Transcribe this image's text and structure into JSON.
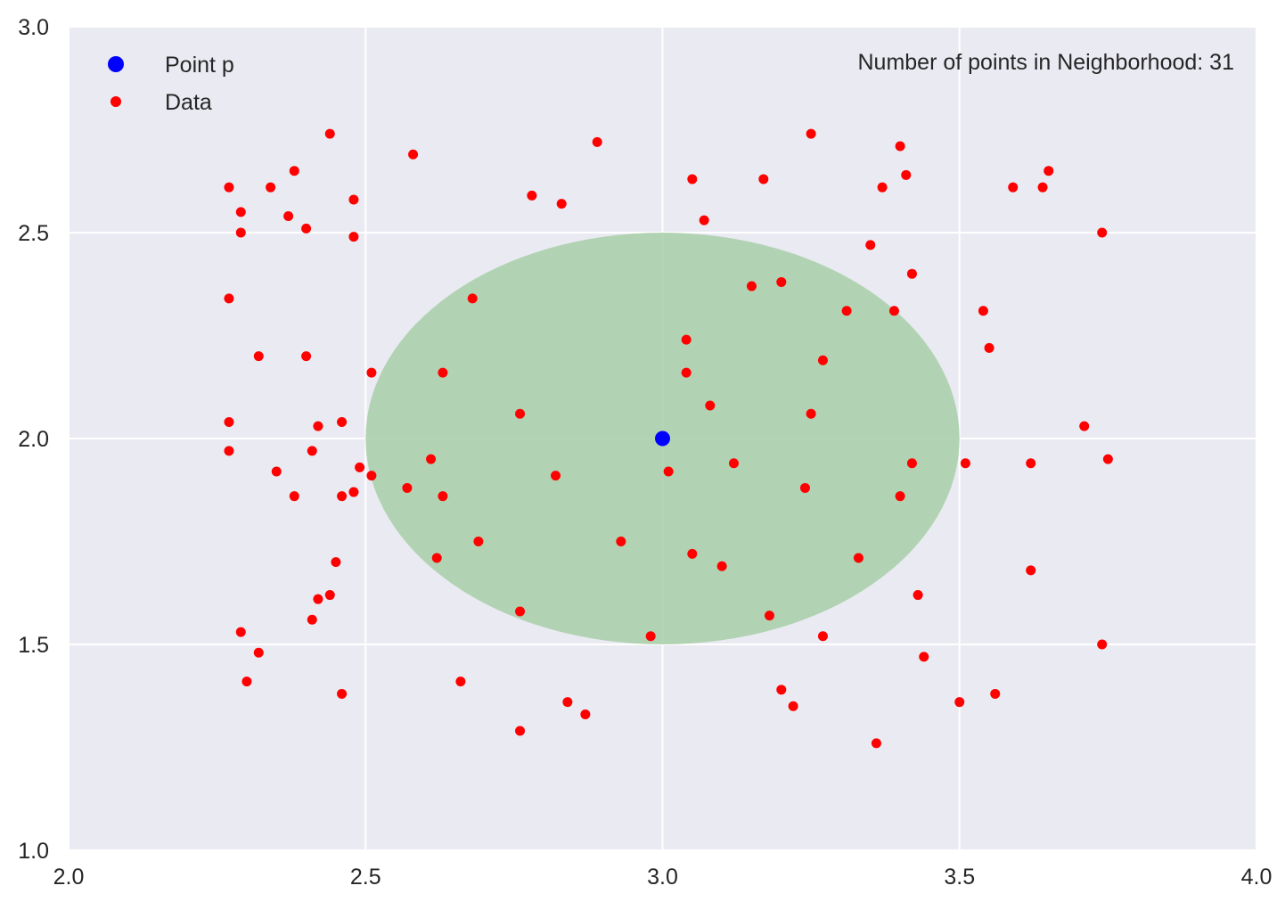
{
  "chart_data": {
    "type": "scatter",
    "title": "",
    "xlabel": "",
    "ylabel": "",
    "xlim": [
      2.0,
      4.0
    ],
    "ylim": [
      1.0,
      3.0
    ],
    "xticks": [
      2.0,
      2.5,
      3.0,
      3.5,
      4.0
    ],
    "yticks": [
      1.0,
      1.5,
      2.0,
      2.5,
      3.0
    ],
    "xtick_labels": [
      "2.0",
      "2.5",
      "3.0",
      "3.5",
      "4.0"
    ],
    "ytick_labels": [
      "1.0",
      "1.5",
      "2.0",
      "2.5",
      "3.0"
    ],
    "grid": true,
    "legend_position": "top-left",
    "background_color": "#eaeaf2",
    "grid_color": "#ffffff",
    "annotation": "Number of points in Neighborhood: 31",
    "neighborhood": {
      "center": [
        3.0,
        2.0
      ],
      "radius": 0.5,
      "color": "#a8cfa8"
    },
    "series": [
      {
        "name": "Point p",
        "color": "#0000ff",
        "points": [
          [
            3.0,
            2.0
          ]
        ]
      },
      {
        "name": "Data",
        "color": "#ff0000",
        "points": [
          [
            2.27,
            2.61
          ],
          [
            2.29,
            2.55
          ],
          [
            2.29,
            2.5
          ],
          [
            2.34,
            2.61
          ],
          [
            2.37,
            2.54
          ],
          [
            2.38,
            2.65
          ],
          [
            2.4,
            2.51
          ],
          [
            2.44,
            2.74
          ],
          [
            2.48,
            2.58
          ],
          [
            2.48,
            2.49
          ],
          [
            2.58,
            2.69
          ],
          [
            2.89,
            2.72
          ],
          [
            2.78,
            2.59
          ],
          [
            2.83,
            2.57
          ],
          [
            2.27,
            2.34
          ],
          [
            2.32,
            2.2
          ],
          [
            2.4,
            2.2
          ],
          [
            2.27,
            2.04
          ],
          [
            2.27,
            1.97
          ],
          [
            2.35,
            1.92
          ],
          [
            2.38,
            1.86
          ],
          [
            2.41,
            1.97
          ],
          [
            2.42,
            2.03
          ],
          [
            2.46,
            2.04
          ],
          [
            2.46,
            1.86
          ],
          [
            2.48,
            1.87
          ],
          [
            2.49,
            1.93
          ],
          [
            2.51,
            1.91
          ],
          [
            2.51,
            2.16
          ],
          [
            2.45,
            1.7
          ],
          [
            2.42,
            1.61
          ],
          [
            2.44,
            1.62
          ],
          [
            2.41,
            1.56
          ],
          [
            2.29,
            1.53
          ],
          [
            2.32,
            1.48
          ],
          [
            2.3,
            1.41
          ],
          [
            2.46,
            1.38
          ],
          [
            2.68,
            2.34
          ],
          [
            2.63,
            2.16
          ],
          [
            2.61,
            1.95
          ],
          [
            2.57,
            1.88
          ],
          [
            2.63,
            1.86
          ],
          [
            2.62,
            1.71
          ],
          [
            2.69,
            1.75
          ],
          [
            2.76,
            2.06
          ],
          [
            2.82,
            1.91
          ],
          [
            2.93,
            1.75
          ],
          [
            2.76,
            1.58
          ],
          [
            2.66,
            1.41
          ],
          [
            2.76,
            1.29
          ],
          [
            2.84,
            1.36
          ],
          [
            2.87,
            1.33
          ],
          [
            2.98,
            1.52
          ],
          [
            3.05,
            2.63
          ],
          [
            3.07,
            2.53
          ],
          [
            3.04,
            2.24
          ],
          [
            3.04,
            2.16
          ],
          [
            3.08,
            2.08
          ],
          [
            3.01,
            1.92
          ],
          [
            3.12,
            1.94
          ],
          [
            3.05,
            1.72
          ],
          [
            3.1,
            1.69
          ],
          [
            3.17,
            2.63
          ],
          [
            3.15,
            2.37
          ],
          [
            3.2,
            2.38
          ],
          [
            3.18,
            1.57
          ],
          [
            3.2,
            1.39
          ],
          [
            3.22,
            1.35
          ],
          [
            3.24,
            1.88
          ],
          [
            3.25,
            2.06
          ],
          [
            3.27,
            2.19
          ],
          [
            3.25,
            2.74
          ],
          [
            3.31,
            2.31
          ],
          [
            3.35,
            2.47
          ],
          [
            3.37,
            2.61
          ],
          [
            3.4,
            2.71
          ],
          [
            3.41,
            2.64
          ],
          [
            3.39,
            2.31
          ],
          [
            3.42,
            2.4
          ],
          [
            3.42,
            1.94
          ],
          [
            3.4,
            1.86
          ],
          [
            3.33,
            1.71
          ],
          [
            3.27,
            1.52
          ],
          [
            3.36,
            1.26
          ],
          [
            3.43,
            1.62
          ],
          [
            3.44,
            1.47
          ],
          [
            3.51,
            1.94
          ],
          [
            3.54,
            2.31
          ],
          [
            3.55,
            2.22
          ],
          [
            3.59,
            2.61
          ],
          [
            3.64,
            2.61
          ],
          [
            3.65,
            2.65
          ],
          [
            3.74,
            2.5
          ],
          [
            3.71,
            2.03
          ],
          [
            3.75,
            1.95
          ],
          [
            3.62,
            1.94
          ],
          [
            3.62,
            1.68
          ],
          [
            3.74,
            1.5
          ],
          [
            3.56,
            1.38
          ],
          [
            3.5,
            1.36
          ]
        ]
      }
    ]
  }
}
